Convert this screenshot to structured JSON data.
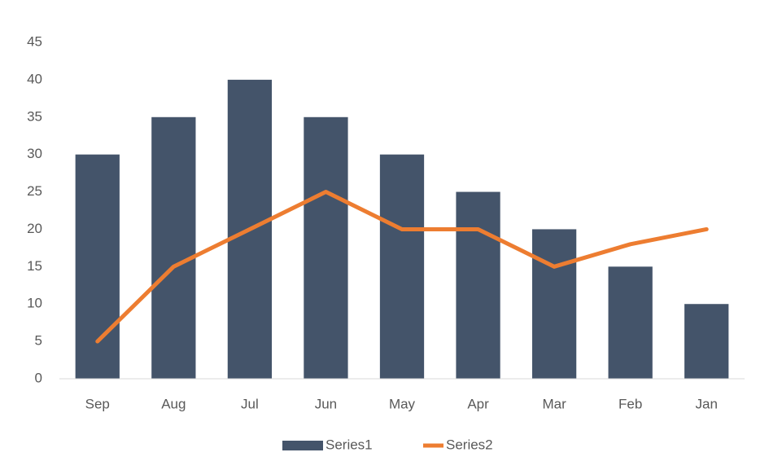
{
  "chart_data": {
    "type": "combo",
    "categories": [
      "Sep",
      "Aug",
      "Jul",
      "Jun",
      "May",
      "Apr",
      "Mar",
      "Feb",
      "Jan"
    ],
    "series": [
      {
        "name": "Series1",
        "type": "bar",
        "color": "#44546a",
        "values": [
          30,
          35,
          40,
          35,
          30,
          25,
          20,
          15,
          10
        ]
      },
      {
        "name": "Series2",
        "type": "line",
        "color": "#ed7d31",
        "values": [
          5,
          15,
          20,
          25,
          20,
          20,
          15,
          18,
          20
        ]
      }
    ],
    "ylim": [
      0,
      45
    ],
    "yticks": [
      0,
      5,
      10,
      15,
      20,
      25,
      30,
      35,
      40,
      45
    ],
    "grid": false,
    "legend": "bottom"
  }
}
